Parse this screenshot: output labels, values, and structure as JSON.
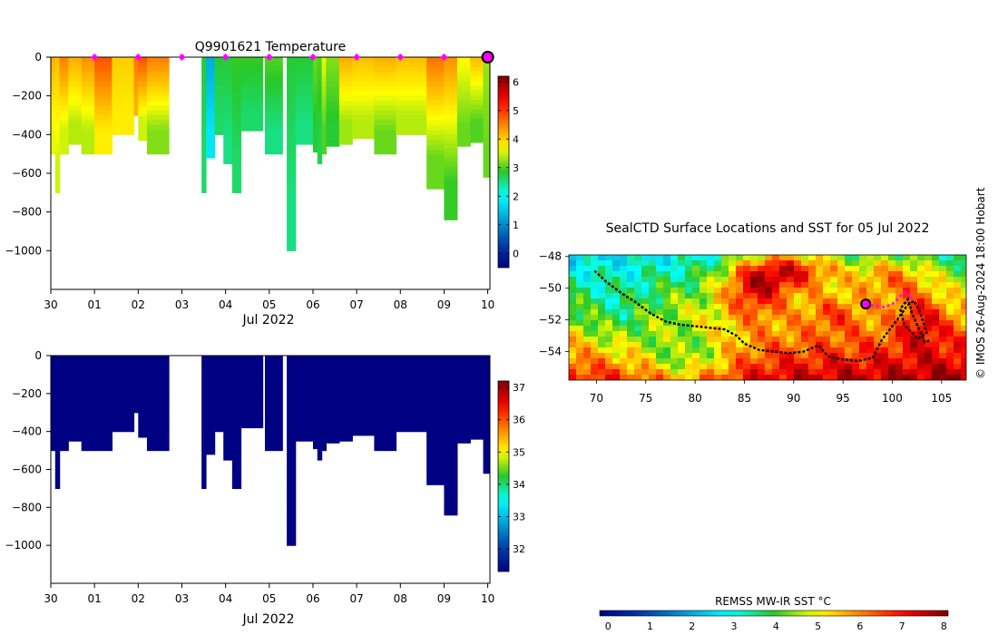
{
  "figure": {
    "credit": "© IMOS 26-Aug-2024 18:00 Hobart"
  },
  "chart_data": [
    {
      "type": "heatmap",
      "title": "Q9901621  Temperature",
      "xlabel": "Jul 2022",
      "ylabel": "",
      "x_tick_labels": [
        "30",
        "01",
        "02",
        "03",
        "04",
        "05",
        "06",
        "07",
        "08",
        "09",
        "10"
      ],
      "x_range_days": [
        0,
        10.05
      ],
      "y_ticks": [
        0,
        -200,
        -400,
        -600,
        -800,
        -1000
      ],
      "ylim": [
        -1200,
        0
      ],
      "colorbar": {
        "ticks": [
          0,
          1,
          2,
          3,
          4,
          5,
          6
        ],
        "range": [
          -0.5,
          6.2
        ]
      },
      "profile_markers_days": [
        1,
        2,
        3,
        4,
        5,
        6,
        7,
        8,
        9
      ],
      "current_profile_day": 10,
      "profiles": [
        {
          "t": 0.05,
          "w": 0.1,
          "depth": 500,
          "surf": 4.2,
          "deep": 3.6
        },
        {
          "t": 0.15,
          "w": 0.1,
          "depth": 700,
          "surf": 4.1,
          "deep": 3.5
        },
        {
          "t": 0.3,
          "w": 0.2,
          "depth": 500,
          "surf": 4.5,
          "deep": 3.5
        },
        {
          "t": 0.55,
          "w": 0.3,
          "depth": 450,
          "surf": 4.2,
          "deep": 3.4
        },
        {
          "t": 0.85,
          "w": 0.3,
          "depth": 500,
          "surf": 4.4,
          "deep": 3.4
        },
        {
          "t": 1.2,
          "w": 0.4,
          "depth": 500,
          "surf": 4.8,
          "deep": 3.8
        },
        {
          "t": 1.65,
          "w": 0.5,
          "depth": 400,
          "surf": 4.0,
          "deep": 3.8
        },
        {
          "t": 1.95,
          "w": 0.1,
          "depth": 300,
          "surf": 4.6,
          "deep": 4.2
        },
        {
          "t": 2.1,
          "w": 0.2,
          "depth": 430,
          "surf": 4.8,
          "deep": 3.5
        },
        {
          "t": 2.45,
          "w": 0.5,
          "depth": 500,
          "surf": 4.5,
          "deep": 3.2
        },
        {
          "t": 3.5,
          "w": 0.1,
          "depth": 700,
          "surf": 2.8,
          "deep": 2.6
        },
        {
          "t": 3.65,
          "w": 0.2,
          "depth": 520,
          "surf": 1.3,
          "deep": 1.8
        },
        {
          "t": 3.85,
          "w": 0.2,
          "depth": 400,
          "surf": 2.8,
          "deep": 2.6
        },
        {
          "t": 4.05,
          "w": 0.2,
          "depth": 550,
          "surf": 2.8,
          "deep": 2.5
        },
        {
          "t": 4.25,
          "w": 0.2,
          "depth": 700,
          "surf": 2.9,
          "deep": 2.6
        },
        {
          "t": 4.6,
          "w": 0.5,
          "depth": 380,
          "surf": 2.9,
          "deep": 2.6
        },
        {
          "t": 5.1,
          "w": 0.4,
          "depth": 500,
          "surf": 3.0,
          "deep": 2.5
        },
        {
          "t": 5.5,
          "w": 0.2,
          "depth": 1000,
          "surf": 2.8,
          "deep": 2.5
        },
        {
          "t": 5.8,
          "w": 0.4,
          "depth": 450,
          "surf": 2.8,
          "deep": 2.5
        },
        {
          "t": 6.05,
          "w": 0.1,
          "depth": 490,
          "surf": 3.1,
          "deep": 2.8
        },
        {
          "t": 6.15,
          "w": 0.1,
          "depth": 550,
          "surf": 3.0,
          "deep": 2.7
        },
        {
          "t": 6.25,
          "w": 0.1,
          "depth": 500,
          "surf": 3.6,
          "deep": 3.0
        },
        {
          "t": 6.45,
          "w": 0.3,
          "depth": 460,
          "surf": 3.2,
          "deep": 2.8
        },
        {
          "t": 6.75,
          "w": 0.3,
          "depth": 450,
          "surf": 4.2,
          "deep": 3.3
        },
        {
          "t": 7.15,
          "w": 0.5,
          "depth": 420,
          "surf": 4.1,
          "deep": 3.4
        },
        {
          "t": 7.65,
          "w": 0.5,
          "depth": 500,
          "surf": 4.2,
          "deep": 3.1
        },
        {
          "t": 8.25,
          "w": 0.7,
          "depth": 400,
          "surf": 4.1,
          "deep": 3.4
        },
        {
          "t": 8.8,
          "w": 0.4,
          "depth": 680,
          "surf": 4.6,
          "deep": 3.1
        },
        {
          "t": 9.15,
          "w": 0.3,
          "depth": 840,
          "surf": 4.4,
          "deep": 2.9
        },
        {
          "t": 9.45,
          "w": 0.3,
          "depth": 460,
          "surf": 3.7,
          "deep": 3.1
        },
        {
          "t": 9.75,
          "w": 0.3,
          "depth": 440,
          "surf": 4.1,
          "deep": 3.0
        },
        {
          "t": 9.97,
          "w": 0.15,
          "depth": 620,
          "surf": 3.3,
          "deep": 3.1
        }
      ]
    },
    {
      "type": "heatmap",
      "title": "",
      "xlabel": "Jul 2022",
      "ylabel": "",
      "x_tick_labels": [
        "30",
        "01",
        "02",
        "03",
        "04",
        "05",
        "06",
        "07",
        "08",
        "09",
        "10"
      ],
      "x_range_days": [
        0,
        10.05
      ],
      "y_ticks": [
        0,
        -200,
        -400,
        -600,
        -800,
        -1000
      ],
      "ylim": [
        -1200,
        0
      ],
      "colorbar": {
        "ticks": [
          32,
          33,
          34,
          35,
          36,
          37
        ],
        "range": [
          31.3,
          37.2
        ]
      },
      "fill_value": 31.3,
      "uses_profiles_of_chart": 0
    },
    {
      "type": "heatmap",
      "title": "SealCTD Surface Locations and SST for 05 Jul 2022",
      "xlabel": "",
      "ylabel": "",
      "x_ticks": [
        70,
        75,
        80,
        85,
        90,
        95,
        100,
        105
      ],
      "y_ticks": [
        -48,
        -50,
        -52,
        -54
      ],
      "xlim": [
        67.2,
        107.5
      ],
      "ylim": [
        -55.8,
        -47.9
      ],
      "colorbar": {
        "label": "REMSS MW-IR SST °C",
        "ticks": [
          0,
          1,
          2,
          3,
          4,
          5,
          6,
          7,
          8
        ],
        "range": [
          -0.2,
          8.1
        ]
      },
      "track": [
        [
          69.8,
          -48.9
        ],
        [
          71.0,
          -49.6
        ],
        [
          72.5,
          -50.3
        ],
        [
          74.0,
          -50.9
        ],
        [
          75.5,
          -51.6
        ],
        [
          77.0,
          -52.1
        ],
        [
          78.5,
          -52.3
        ],
        [
          80.0,
          -52.4
        ],
        [
          81.5,
          -52.5
        ],
        [
          83.0,
          -52.6
        ],
        [
          84.2,
          -53.0
        ],
        [
          85.0,
          -53.5
        ],
        [
          86.5,
          -53.9
        ],
        [
          88.0,
          -54.0
        ],
        [
          89.5,
          -54.1
        ],
        [
          91.0,
          -54.0
        ],
        [
          92.5,
          -53.6
        ],
        [
          93.5,
          -54.3
        ],
        [
          95.0,
          -54.5
        ],
        [
          96.5,
          -54.6
        ],
        [
          98.0,
          -54.4
        ],
        [
          99.0,
          -53.2
        ],
        [
          100.5,
          -52.0
        ],
        [
          101.5,
          -51.1
        ],
        [
          102.2,
          -50.8
        ],
        [
          102.8,
          -51.5
        ],
        [
          103.5,
          -52.8
        ],
        [
          102.6,
          -53.2
        ],
        [
          101.2,
          -52.3
        ],
        [
          100.8,
          -51.3
        ],
        [
          101.6,
          -50.7
        ],
        [
          102.0,
          -51.6
        ],
        [
          103.3,
          -53.4
        ],
        [
          103.8,
          -53.3
        ]
      ],
      "recent_positions": [
        [
          97.3,
          -51.0
        ],
        [
          98.2,
          -51.1
        ],
        [
          99.2,
          -51.2
        ],
        [
          100.0,
          -51.0
        ],
        [
          100.7,
          -50.6
        ],
        [
          101.2,
          -50.2
        ],
        [
          101.8,
          -50.4
        ],
        [
          102.1,
          -50.9
        ]
      ],
      "current_position": [
        97.3,
        -51.0
      ]
    }
  ]
}
